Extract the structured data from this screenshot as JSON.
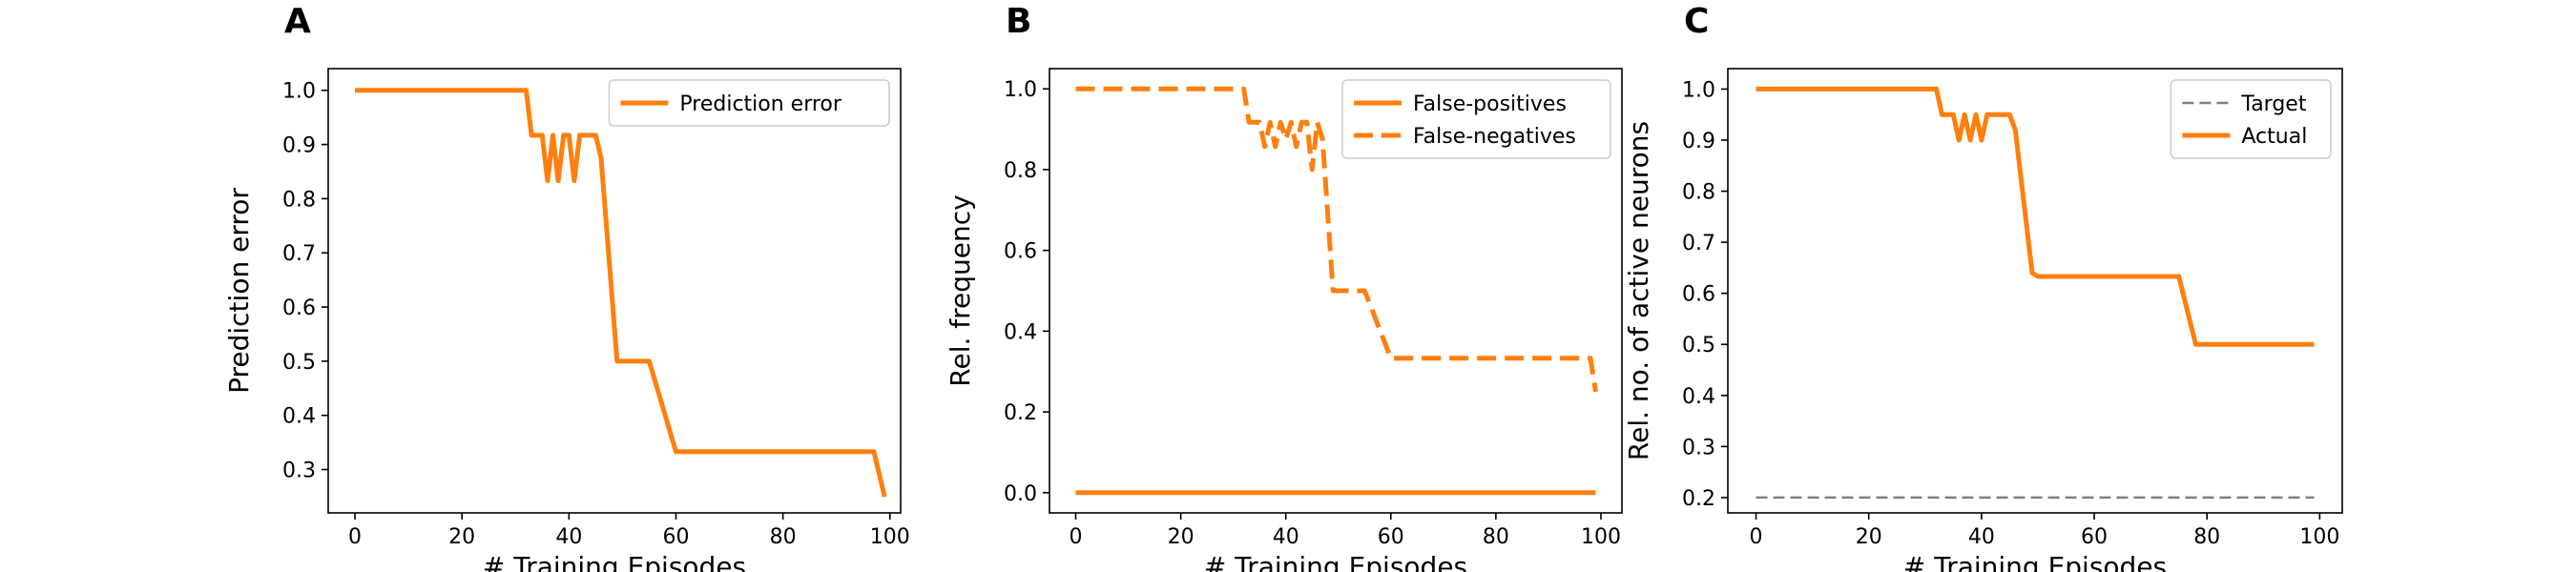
{
  "colors": {
    "orange": "#ff7f0e",
    "gray": "#808080",
    "axis": "#000000"
  },
  "chart_data": [
    {
      "type": "line",
      "panel_label": "A",
      "xlabel": "# Training Episodes",
      "ylabel": "Prediction error",
      "xlim": [
        -5,
        102
      ],
      "ylim": [
        0.22,
        1.04
      ],
      "xticks": [
        0,
        20,
        40,
        60,
        80,
        100
      ],
      "xtick_labels": [
        "0",
        "20",
        "40",
        "60",
        "80",
        "100"
      ],
      "yticks": [
        0.3,
        0.4,
        0.5,
        0.6,
        0.7,
        0.8,
        0.9,
        1.0
      ],
      "ytick_labels": [
        "0.3",
        "0.4",
        "0.5",
        "0.6",
        "0.7",
        "0.8",
        "0.9",
        "1.0"
      ],
      "legend_position": "upper right",
      "series": [
        {
          "name": "Prediction error",
          "color": "#ff7f0e",
          "style": "solid",
          "x": [
            0,
            32,
            33,
            35,
            36,
            37,
            38,
            39,
            40,
            41,
            42,
            43,
            45,
            46,
            49,
            55,
            60,
            97,
            99
          ],
          "y": [
            1.0,
            1.0,
            0.917,
            0.917,
            0.833,
            0.917,
            0.833,
            0.917,
            0.917,
            0.833,
            0.917,
            0.917,
            0.917,
            0.875,
            0.5,
            0.5,
            0.333,
            0.333,
            0.25
          ]
        }
      ]
    },
    {
      "type": "line",
      "panel_label": "B",
      "xlabel": "# Training Episodes",
      "ylabel": "Rel. frequency",
      "xlim": [
        -5,
        104
      ],
      "ylim": [
        -0.05,
        1.05
      ],
      "xticks": [
        0,
        20,
        40,
        60,
        80,
        100
      ],
      "xtick_labels": [
        "0",
        "20",
        "40",
        "60",
        "80",
        "100"
      ],
      "yticks": [
        0.0,
        0.2,
        0.4,
        0.6,
        0.8,
        1.0
      ],
      "ytick_labels": [
        "0.0",
        "0.2",
        "0.4",
        "0.6",
        "0.8",
        "1.0"
      ],
      "legend_position": "upper right",
      "series": [
        {
          "name": "False-positives",
          "color": "#ff7f0e",
          "style": "solid",
          "x": [
            0,
            99
          ],
          "y": [
            0.0,
            0.0
          ]
        },
        {
          "name": "False-negatives",
          "color": "#ff7f0e",
          "style": "dashed",
          "x": [
            0,
            32,
            33,
            35,
            36,
            37,
            38,
            39,
            40,
            41,
            42,
            43,
            44,
            45,
            46,
            47,
            49,
            55,
            60,
            98,
            99
          ],
          "y": [
            1.0,
            1.0,
            0.917,
            0.917,
            0.857,
            0.917,
            0.857,
            0.917,
            0.875,
            0.917,
            0.857,
            0.917,
            0.917,
            0.8,
            0.917,
            0.875,
            0.5,
            0.5,
            0.333,
            0.333,
            0.25
          ]
        }
      ]
    },
    {
      "type": "line",
      "panel_label": "C",
      "xlabel": "# Training Episodes",
      "ylabel": "Rel. no. of active neurons",
      "xlim": [
        -5,
        104
      ],
      "ylim": [
        0.17,
        1.04
      ],
      "xticks": [
        0,
        20,
        40,
        60,
        80,
        100
      ],
      "xtick_labels": [
        "0",
        "20",
        "40",
        "60",
        "80",
        "100"
      ],
      "yticks": [
        0.2,
        0.3,
        0.4,
        0.5,
        0.6,
        0.7,
        0.8,
        0.9,
        1.0
      ],
      "ytick_labels": [
        "0.2",
        "0.3",
        "0.4",
        "0.5",
        "0.6",
        "0.7",
        "0.8",
        "0.9",
        "1.0"
      ],
      "legend_position": "upper right",
      "series": [
        {
          "name": "Target",
          "color": "#808080",
          "style": "dashed-thin",
          "x": [
            0,
            99
          ],
          "y": [
            0.2,
            0.2
          ]
        },
        {
          "name": "Actual",
          "color": "#ff7f0e",
          "style": "solid",
          "x": [
            0,
            32,
            33,
            35,
            36,
            37,
            38,
            39,
            40,
            41,
            42,
            43,
            44,
            45,
            46,
            49,
            50,
            75,
            78,
            99
          ],
          "y": [
            1.0,
            1.0,
            0.95,
            0.95,
            0.9,
            0.95,
            0.9,
            0.95,
            0.9,
            0.95,
            0.95,
            0.95,
            0.95,
            0.95,
            0.92,
            0.64,
            0.633,
            0.633,
            0.5,
            0.5
          ]
        }
      ]
    }
  ]
}
